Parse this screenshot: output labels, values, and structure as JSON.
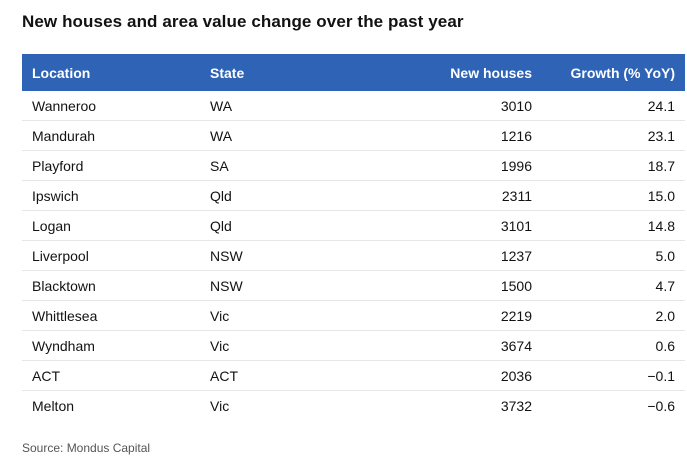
{
  "title": "New houses and area value change over the past year",
  "source": "Source: Mondus Capital",
  "chart_data": {
    "type": "table",
    "title": "New houses and area value change over the past year",
    "columns": [
      "Location",
      "State",
      "New houses",
      "Growth (% YoY)"
    ],
    "rows": [
      {
        "location": "Wanneroo",
        "state": "WA",
        "new_houses": "3010",
        "growth": "24.1"
      },
      {
        "location": "Mandurah",
        "state": "WA",
        "new_houses": "1216",
        "growth": "23.1"
      },
      {
        "location": "Playford",
        "state": "SA",
        "new_houses": "1996",
        "growth": "18.7"
      },
      {
        "location": "Ipswich",
        "state": "Qld",
        "new_houses": "2311",
        "growth": "15.0"
      },
      {
        "location": "Logan",
        "state": "Qld",
        "new_houses": "3101",
        "growth": "14.8"
      },
      {
        "location": "Liverpool",
        "state": "NSW",
        "new_houses": "1237",
        "growth": "5.0"
      },
      {
        "location": "Blacktown",
        "state": "NSW",
        "new_houses": "1500",
        "growth": "4.7"
      },
      {
        "location": "Whittlesea",
        "state": "Vic",
        "new_houses": "2219",
        "growth": "2.0"
      },
      {
        "location": "Wyndham",
        "state": "Vic",
        "new_houses": "3674",
        "growth": "0.6"
      },
      {
        "location": "ACT",
        "state": "ACT",
        "new_houses": "2036",
        "growth": "−0.1"
      },
      {
        "location": "Melton",
        "state": "Vic",
        "new_houses": "3732",
        "growth": "−0.6"
      }
    ]
  },
  "colors": {
    "header_bg": "#2f63b5",
    "header_text": "#ffffff",
    "row_divider": "#e6e6e6"
  }
}
